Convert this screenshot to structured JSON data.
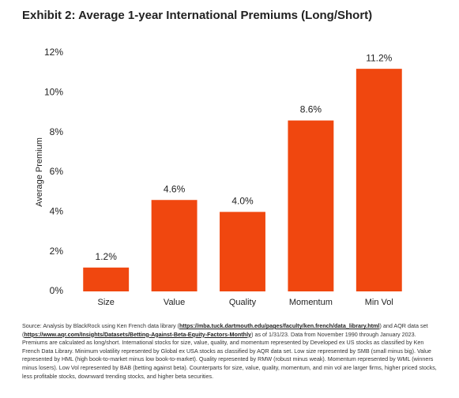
{
  "chart_data": {
    "type": "bar",
    "title": "Exhibit 2: Average 1-year International Premiums (Long/Short)",
    "y_label": "Average Premium",
    "categories": [
      "Size",
      "Value",
      "Quality",
      "Momentum",
      "Min Vol"
    ],
    "values": [
      1.2,
      4.6,
      4.0,
      8.6,
      11.2
    ],
    "value_labels": [
      "1.2%",
      "4.6%",
      "4.0%",
      "8.6%",
      "11.2%"
    ],
    "color": "#f0470f",
    "ylim": [
      0,
      12
    ],
    "yticks": [
      {
        "value": 0,
        "label": "0%"
      },
      {
        "value": 2,
        "label": "2%"
      },
      {
        "value": 4,
        "label": "4%"
      },
      {
        "value": 6,
        "label": "6%"
      },
      {
        "value": 8,
        "label": "8%"
      },
      {
        "value": 10,
        "label": "10%"
      },
      {
        "value": 12,
        "label": "12%"
      }
    ],
    "grid": false,
    "source": [
      {
        "text": "Source: Analysis by BlackRock using Ken French data library (",
        "bold": false
      },
      {
        "text": "https://mba.tuck.dartmouth.edu/pages/faculty/ken.french/data_library.html",
        "bold": true
      },
      {
        "text": ") and AQR data set (",
        "bold": false
      },
      {
        "text": "https://www.aqr.com/Insights/Datasets/Betting-Against-Beta-Equity-Factors-Monthly",
        "bold": true
      },
      {
        "text": ") as of 1/31/23. Data from November 1990 through January 2023. Premiums are calculated as long/short. International stocks for size, value, quality, and momentum represented by Developed ex US stocks as classified by Ken French Data Library. Minimum volatility represented by Global ex USA stocks as classified by AQR data set. Low size represented by SMB (small minus big). Value represented by HML (high book-to-market minus low book-to-market). Quality represented by RMW (robust minus weak). Momentum represented by WML (winners minus losers). Low Vol represented by BAB (betting against beta). Counterparts for size, value, quality, momentum, and min vol are larger firms, higher priced stocks, less profitable stocks, downward trending stocks, and higher beta securities.",
        "bold": false
      }
    ]
  }
}
